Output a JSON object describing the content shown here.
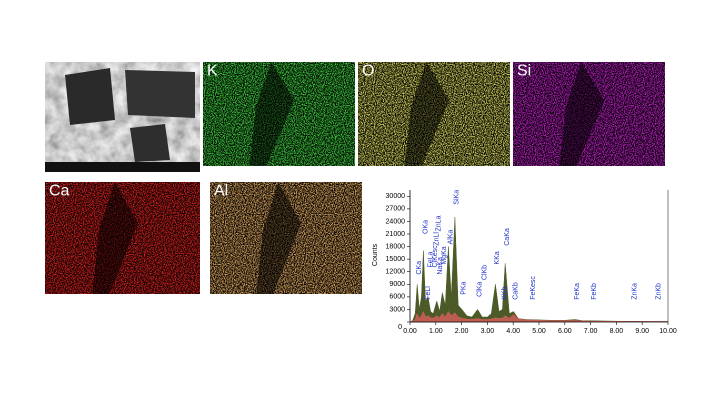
{
  "maps": [
    {
      "label": "K",
      "color": "#3fd03f"
    },
    {
      "label": "O",
      "color": "#d8d860"
    },
    {
      "label": "Si",
      "color": "#c020c8"
    },
    {
      "label": "Ca",
      "color": "#e02020"
    },
    {
      "label": "Al",
      "color": "#e0a860"
    }
  ],
  "chart_data": {
    "type": "area",
    "y_label": "Counts",
    "x": [
      0,
      0.1,
      0.2,
      0.28,
      0.36,
      0.44,
      0.52,
      0.6,
      0.7,
      0.8,
      0.9,
      1.04,
      1.15,
      1.25,
      1.37,
      1.49,
      1.6,
      1.74,
      1.87,
      2.01,
      2.2,
      2.4,
      2.62,
      2.8,
      3.0,
      3.15,
      3.31,
      3.45,
      3.58,
      3.69,
      3.85,
      4.01,
      4.2,
      4.5,
      5.0,
      5.5,
      6.0,
      6.4,
      6.7,
      7.0,
      8.0,
      9.0,
      10.0
    ],
    "series": [
      {
        "color": "#4b5a26",
        "values": [
          0,
          300,
          2000,
          9000,
          3000,
          6000,
          17000,
          5000,
          6000,
          2500,
          2000,
          5000,
          2500,
          7000,
          4000,
          18000,
          6000,
          25000,
          4000,
          3000,
          1500,
          1200,
          3000,
          1200,
          1200,
          2000,
          9000,
          2500,
          3000,
          14000,
          2000,
          2500,
          800,
          600,
          500,
          400,
          400,
          600,
          300,
          300,
          200,
          150,
          100
        ]
      },
      {
        "color": "#e06060",
        "values": [
          0,
          100,
          600,
          2000,
          800,
          1500,
          2500,
          1200,
          1500,
          1000,
          900,
          1500,
          1000,
          2000,
          1200,
          2500,
          1500,
          2200,
          1200,
          900,
          700,
          600,
          800,
          600,
          600,
          700,
          1000,
          800,
          900,
          1500,
          900,
          1800,
          700,
          500,
          400,
          300,
          300,
          350,
          250,
          200,
          150,
          120,
          100
        ]
      }
    ],
    "xlim": [
      0,
      10
    ],
    "ylim": [
      0,
      31500
    ],
    "xticks": [
      {
        "value": 0,
        "label": "0.00"
      },
      {
        "value": 1,
        "label": "1.00"
      },
      {
        "value": 2,
        "label": "2.00"
      },
      {
        "value": 3,
        "label": "3.00"
      },
      {
        "value": 4,
        "label": "4.00"
      },
      {
        "value": 5,
        "label": "5.00"
      },
      {
        "value": 6,
        "label": "6.00"
      },
      {
        "value": 7,
        "label": "7.00"
      },
      {
        "value": 8,
        "label": "8.00"
      },
      {
        "value": 9,
        "label": "9.00"
      },
      {
        "value": 10,
        "label": "10.00"
      }
    ],
    "yticks": [
      0,
      3000,
      6000,
      9000,
      12000,
      15000,
      18000,
      21000,
      24000,
      27000,
      30000
    ],
    "annotations": [
      "CKa",
      "OKa",
      "FeLl",
      "FeLa",
      "ClKesc",
      "ZnLl",
      "ZnLa",
      "NaKa",
      "MgKa",
      "AlKa",
      "SiKa",
      "PKa",
      "ClKa",
      "ClKb",
      "KKa",
      "KKb",
      "CaKa",
      "CaKb",
      "FeKesc",
      "FeKa",
      "FeKb",
      "ZnKa",
      "ZnKb"
    ]
  }
}
